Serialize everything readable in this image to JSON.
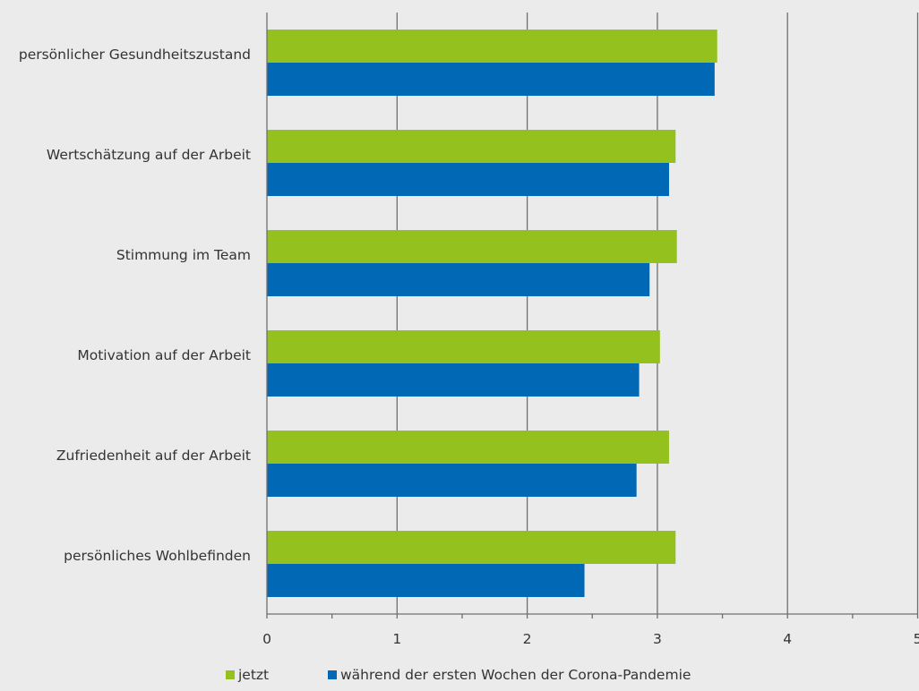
{
  "chart_data": {
    "type": "bar",
    "orientation": "horizontal",
    "categories": [
      "persönlicher Gesundheitszustand",
      "Wertschätzung auf der Arbeit",
      "Stimmung im Team",
      "Motivation auf der Arbeit",
      "Zufriedenheit auf der Arbeit",
      "persönliches Wohlbefinden"
    ],
    "series": [
      {
        "name": "jetzt",
        "color": "#95c11f",
        "values": [
          3.46,
          3.14,
          3.15,
          3.02,
          3.09,
          3.14
        ]
      },
      {
        "name": "während der ersten Wochen der Corona-Pandemie",
        "color": "#0068b4",
        "values": [
          3.44,
          3.09,
          2.94,
          2.86,
          2.84,
          2.44
        ]
      }
    ],
    "xlim": [
      0,
      5
    ],
    "x_ticks": [
      "0",
      "1",
      "2",
      "3",
      "4",
      "5"
    ],
    "grid": true,
    "legend_position": "bottom"
  }
}
